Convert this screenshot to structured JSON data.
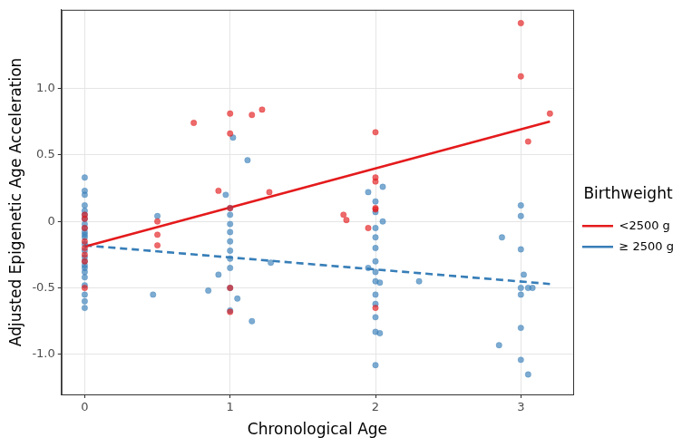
{
  "chart_data": {
    "type": "scatter",
    "x_label": "Chronological Age",
    "y_label": "Adjusted Epigenetic Age Acceleration",
    "legend": "right",
    "legend_title": "Birthweight",
    "grid": true,
    "xlim": [
      -0.16,
      3.36
    ],
    "xticks": [
      0,
      1,
      2,
      3
    ],
    "ylim": [
      -1.3,
      1.59
    ],
    "yticks": [
      -1,
      -0.5,
      0,
      0.5,
      1
    ],
    "series": [
      {
        "name": "<2500 g",
        "color": "#e41a1c",
        "marker": "circle",
        "line_style": "solid",
        "x": [
          0,
          0,
          0,
          0,
          0,
          0,
          0,
          0,
          0.5,
          0.5,
          0.5,
          0.75,
          0.92,
          1.0,
          1.0,
          1.0,
          1.0,
          1.0,
          1.15,
          1.22,
          1.27,
          1.78,
          1.8,
          1.95,
          2.0,
          2.0,
          2.0,
          2.0,
          2.0,
          2.0,
          3.0,
          3.0,
          3.05,
          3.2
        ],
        "values": [
          0.05,
          0.02,
          -0.05,
          -0.15,
          -0.2,
          -0.25,
          -0.3,
          -0.5,
          0.0,
          -0.1,
          -0.18,
          0.74,
          0.23,
          0.81,
          0.66,
          0.1,
          -0.68,
          -0.5,
          0.8,
          0.84,
          0.22,
          0.05,
          0.01,
          -0.05,
          0.67,
          0.33,
          0.3,
          0.09,
          0.1,
          -0.65,
          1.49,
          1.09,
          0.6,
          0.81
        ],
        "trend": {
          "x": [
            0,
            3.2
          ],
          "values": [
            -0.19,
            0.75
          ]
        }
      },
      {
        "name": "≥ 2500 g",
        "color": "#377eb8",
        "marker": "circle",
        "line_style": "dashed",
        "x": [
          0,
          0,
          0,
          0,
          0,
          0,
          0,
          0,
          0,
          0,
          0,
          0,
          0,
          0,
          0,
          0,
          0,
          0,
          0,
          0,
          0,
          0,
          0,
          0,
          0.47,
          0.5,
          0.85,
          0.92,
          0.97,
          1.0,
          1.0,
          1.0,
          1.0,
          1.0,
          1.0,
          1.0,
          1.0,
          1.0,
          1.0,
          1.02,
          1.05,
          1.12,
          1.15,
          1.28,
          1.95,
          1.95,
          2.0,
          2.0,
          2.0,
          2.0,
          2.0,
          2.0,
          2.0,
          2.0,
          2.0,
          2.0,
          2.0,
          2.0,
          2.0,
          2.03,
          2.03,
          2.05,
          2.05,
          2.3,
          2.85,
          2.87,
          3.0,
          3.0,
          3.0,
          3.0,
          3.0,
          3.0,
          3.0,
          3.02,
          3.05,
          3.05,
          3.08
        ],
        "values": [
          0.33,
          0.23,
          0.2,
          0.12,
          0.08,
          0.05,
          0.02,
          -0.02,
          -0.05,
          -0.08,
          -0.1,
          -0.12,
          -0.17,
          -0.22,
          -0.27,
          -0.3,
          -0.33,
          -0.35,
          -0.38,
          -0.42,
          -0.48,
          -0.55,
          -0.6,
          -0.65,
          -0.55,
          0.04,
          -0.52,
          -0.4,
          0.2,
          0.1,
          0.05,
          -0.02,
          -0.08,
          -0.15,
          -0.22,
          -0.28,
          -0.35,
          -0.5,
          -0.67,
          0.63,
          -0.58,
          0.46,
          -0.75,
          -0.31,
          0.22,
          -0.35,
          0.15,
          0.07,
          -0.05,
          -0.12,
          -0.2,
          -0.3,
          -0.38,
          -0.45,
          -0.55,
          -0.62,
          -0.72,
          -0.83,
          -1.08,
          -0.84,
          -0.46,
          0.26,
          0.0,
          -0.45,
          -0.93,
          -0.12,
          0.12,
          0.04,
          -0.21,
          -0.5,
          -0.55,
          -0.8,
          -1.04,
          -0.4,
          -1.15,
          -0.5,
          -0.5
        ],
        "trend": {
          "x": [
            0,
            3.2
          ],
          "values": [
            -0.18,
            -0.47
          ]
        }
      }
    ]
  }
}
